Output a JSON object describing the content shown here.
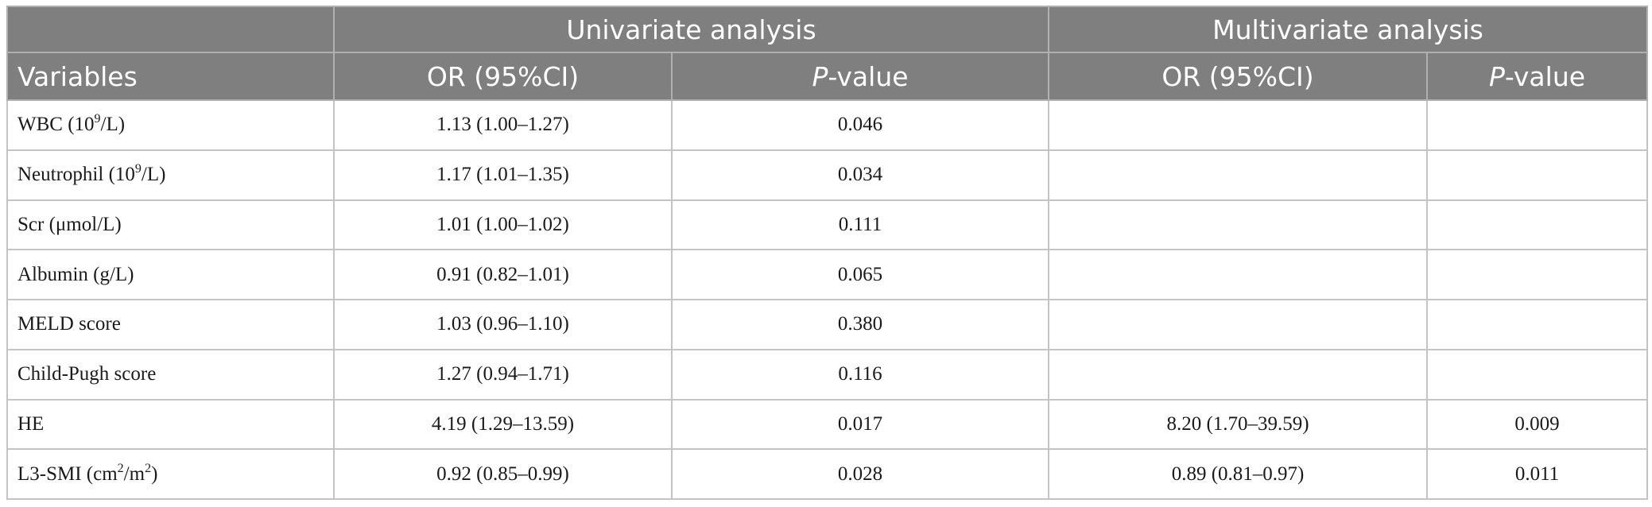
{
  "header": {
    "group_univariate": "Univariate analysis",
    "group_multivariate": "Multivariate analysis",
    "col_variables": "Variables",
    "col_or_1": "OR (95%CI)",
    "col_p_1_prefix": "P",
    "col_p_1_suffix": "-value",
    "col_or_2": "OR (95%CI)",
    "col_p_2_prefix": "P",
    "col_p_2_suffix": "-value"
  },
  "rows": [
    {
      "var_pre": "WBC (10",
      "var_sup": "9",
      "var_post": "/L)",
      "uni_or": "1.13 (1.00–1.27)",
      "uni_p": "0.046",
      "multi_or": "",
      "multi_p": ""
    },
    {
      "var_pre": "Neutrophil (10",
      "var_sup": "9",
      "var_post": "/L)",
      "uni_or": "1.17 (1.01–1.35)",
      "uni_p": "0.034",
      "multi_or": "",
      "multi_p": ""
    },
    {
      "var_pre": "Scr (μmol/L)",
      "uni_or": "1.01 (1.00–1.02)",
      "uni_p": "0.111",
      "multi_or": "",
      "multi_p": ""
    },
    {
      "var_pre": "Albumin (g/L)",
      "uni_or": "0.91 (0.82–1.01)",
      "uni_p": "0.065",
      "multi_or": "",
      "multi_p": ""
    },
    {
      "var_pre": "MELD score",
      "uni_or": "1.03 (0.96–1.10)",
      "uni_p": "0.380",
      "multi_or": "",
      "multi_p": ""
    },
    {
      "var_pre": "Child-Pugh score",
      "uni_or": "1.27 (0.94–1.71)",
      "uni_p": "0.116",
      "multi_or": "",
      "multi_p": ""
    },
    {
      "var_pre": "HE",
      "uni_or": "4.19 (1.29–13.59)",
      "uni_p": "0.017",
      "multi_or": "8.20 (1.70–39.59)",
      "multi_p": "0.009"
    },
    {
      "var_pre": "L3-SMI (cm",
      "var_sup": "2",
      "var_mid": "/m",
      "var_sup2": "2",
      "var_post": ")",
      "uni_or": "0.92 (0.85–0.99)",
      "uni_p": "0.028",
      "multi_or": "0.89 (0.81–0.97)",
      "multi_p": "0.011"
    }
  ]
}
